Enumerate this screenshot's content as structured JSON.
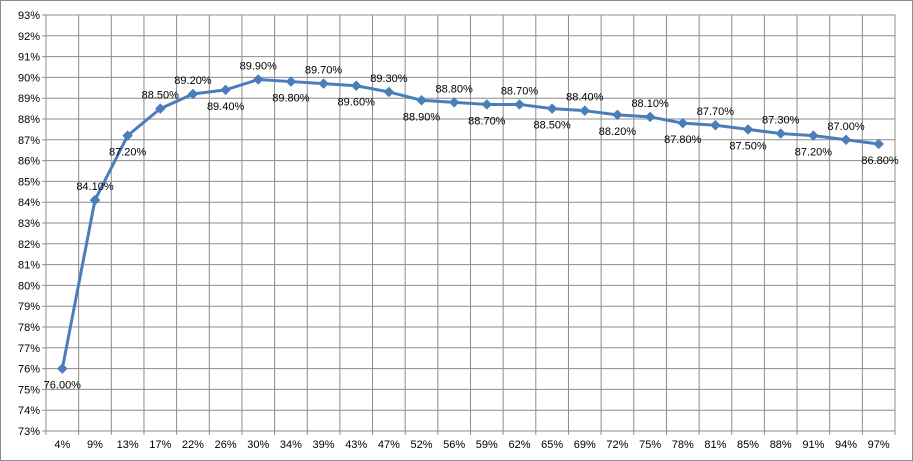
{
  "chart_data": {
    "type": "line",
    "title": "",
    "xlabel": "",
    "ylabel": "",
    "categories": [
      "4%",
      "9%",
      "13%",
      "17%",
      "22%",
      "26%",
      "30%",
      "34%",
      "39%",
      "43%",
      "47%",
      "52%",
      "56%",
      "59%",
      "62%",
      "65%",
      "69%",
      "72%",
      "75%",
      "78%",
      "81%",
      "85%",
      "88%",
      "91%",
      "94%",
      "97%"
    ],
    "series": [
      {
        "values": [
          76.0,
          84.1,
          87.2,
          88.5,
          89.2,
          89.4,
          89.9,
          89.8,
          89.7,
          89.6,
          89.3,
          88.9,
          88.8,
          88.7,
          88.7,
          88.5,
          88.4,
          88.2,
          88.1,
          87.8,
          87.7,
          87.5,
          87.3,
          87.2,
          87.0,
          86.8
        ],
        "data_labels": [
          "76.00%",
          "84.10%",
          "87.20%",
          "88.50%",
          "89.20%",
          "89.40%",
          "89.90%",
          "89.80%",
          "89.70%",
          "89.60%",
          "89.30%",
          "88.90%",
          "88.80%",
          "88.70%",
          "88.70%",
          "88.50%",
          "88.40%",
          "88.20%",
          "88.10%",
          "87.80%",
          "87.70%",
          "87.50%",
          "87.30%",
          "87.20%",
          "87.00%",
          "86.80%"
        ],
        "label_side": [
          "below",
          "above",
          "below",
          "above",
          "above",
          "below",
          "above",
          "below",
          "above",
          "below",
          "above",
          "below",
          "above",
          "below",
          "above",
          "below",
          "above",
          "below",
          "above",
          "below",
          "above",
          "below",
          "above",
          "below",
          "above",
          "below"
        ],
        "color": "#4a7ebb",
        "marker": "diamond"
      }
    ],
    "ylim": [
      73,
      93
    ],
    "yticks": [
      "73%",
      "74%",
      "75%",
      "76%",
      "77%",
      "78%",
      "79%",
      "80%",
      "81%",
      "82%",
      "83%",
      "84%",
      "85%",
      "86%",
      "87%",
      "88%",
      "89%",
      "90%",
      "91%",
      "92%",
      "93%"
    ],
    "grid": true,
    "grid_color": "#8c8c8c",
    "legend": "none"
  }
}
